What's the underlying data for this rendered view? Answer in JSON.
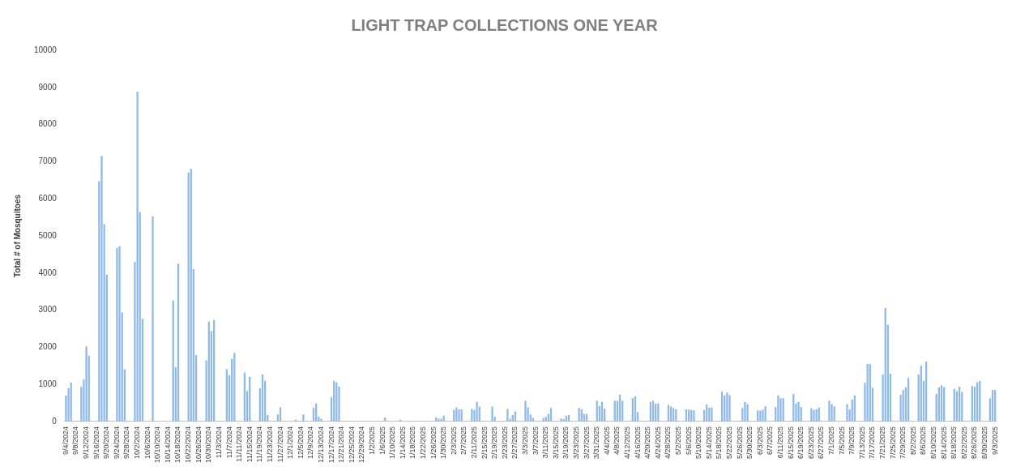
{
  "chart_data": {
    "type": "bar",
    "title": "LIGHT TRAP COLLECTIONS ONE YEAR",
    "ylabel": "Total # of Mosquitoes",
    "color": "#8fb9e8",
    "ylim": [
      0,
      10000
    ],
    "yticks": [
      0,
      1000,
      2000,
      3000,
      4000,
      5000,
      6000,
      7000,
      8000,
      9000,
      10000
    ],
    "categories": [
      "9/4/2024",
      null,
      null,
      null,
      "9/8/2024",
      null,
      null,
      null,
      "9/12/2024",
      null,
      null,
      null,
      "9/16/2024",
      null,
      null,
      null,
      "9/20/2024",
      null,
      null,
      null,
      "9/24/2024",
      null,
      null,
      null,
      "9/28/2024",
      null,
      null,
      null,
      "10/2/2024",
      null,
      null,
      null,
      "10/6/2024",
      null,
      null,
      null,
      "10/10/2024",
      null,
      null,
      null,
      "10/14/2024",
      null,
      null,
      null,
      "10/18/2024",
      null,
      null,
      null,
      "10/22/2024",
      null,
      null,
      null,
      "10/26/2024",
      null,
      null,
      null,
      "10/30/2024",
      null,
      null,
      null,
      "11/3/2024",
      null,
      null,
      null,
      "11/7/2024",
      null,
      null,
      null,
      "11/11/2024",
      null,
      null,
      null,
      "11/15/2024",
      null,
      null,
      null,
      "11/19/2024",
      null,
      null,
      null,
      "11/23/2024",
      null,
      null,
      null,
      "11/27/2024",
      null,
      null,
      null,
      "12/1/2024",
      null,
      null,
      null,
      "12/5/2024",
      null,
      null,
      null,
      "12/9/2024",
      null,
      null,
      null,
      "12/13/2024",
      null,
      null,
      null,
      "12/17/2024",
      null,
      null,
      null,
      "12/21/2024",
      null,
      null,
      null,
      "12/25/2024",
      null,
      null,
      null,
      "12/29/2024",
      null,
      null,
      null,
      "1/2/2025",
      null,
      null,
      null,
      "1/6/2025",
      null,
      null,
      null,
      "1/10/2025",
      null,
      null,
      null,
      "1/14/2025",
      null,
      null,
      null,
      "1/18/2025",
      null,
      null,
      null,
      "1/22/2025",
      null,
      null,
      null,
      "1/26/2025",
      null,
      null,
      null,
      "1/30/2025",
      null,
      null,
      null,
      "2/3/2025",
      null,
      null,
      null,
      "2/7/2025",
      null,
      null,
      null,
      "2/11/2025",
      null,
      null,
      null,
      "2/15/2025",
      null,
      null,
      null,
      "2/19/2025",
      null,
      null,
      null,
      "2/23/2025",
      null,
      null,
      null,
      "2/27/2025",
      null,
      null,
      null,
      "3/3/2025",
      null,
      null,
      null,
      "3/7/2025",
      null,
      null,
      null,
      "3/11/2025",
      null,
      null,
      null,
      "3/15/2025",
      null,
      null,
      null,
      "3/19/2025",
      null,
      null,
      null,
      "3/23/2025",
      null,
      null,
      null,
      "3/27/2025",
      null,
      null,
      null,
      "3/31/2025",
      null,
      null,
      null,
      "4/4/2025",
      null,
      null,
      null,
      "4/8/2025",
      null,
      null,
      null,
      "4/12/2025",
      null,
      null,
      null,
      "4/16/2025",
      null,
      null,
      null,
      "4/20/2025",
      null,
      null,
      null,
      "4/24/2025",
      null,
      null,
      null,
      "4/28/2025",
      null,
      null,
      null,
      "5/2/2025",
      null,
      null,
      null,
      "5/6/2025",
      null,
      null,
      null,
      "5/10/2025",
      null,
      null,
      null,
      "5/14/2025",
      null,
      null,
      null,
      "5/18/2025",
      null,
      null,
      null,
      "5/22/2025",
      null,
      null,
      null,
      "5/26/2025",
      null,
      null,
      null,
      "5/30/2025",
      null,
      null,
      null,
      "6/3/2025",
      null,
      null,
      null,
      "6/7/2025",
      null,
      null,
      null,
      "6/11/2025",
      null,
      null,
      null,
      "6/15/2025",
      null,
      null,
      null,
      "6/19/2025",
      null,
      null,
      null,
      "6/23/2025",
      null,
      null,
      null,
      "6/27/2025",
      null,
      null,
      null,
      "7/1/2025",
      null,
      null,
      null,
      "7/5/2025",
      null,
      null,
      null,
      "7/9/2025",
      null,
      null,
      null,
      "7/13/2025",
      null,
      null,
      null,
      "7/17/2025",
      null,
      null,
      null,
      "7/21/2025",
      null,
      null,
      null,
      "7/25/2025",
      null,
      null,
      null,
      "7/29/2025",
      null,
      null,
      null,
      "8/2/2025",
      null,
      null,
      null,
      "8/6/2025",
      null,
      null,
      null,
      "8/10/2025",
      null,
      null,
      null,
      "8/14/2025",
      null,
      null,
      null,
      "8/18/2025",
      null,
      null,
      null,
      "8/22/2025",
      null,
      null,
      null,
      "8/26/2025",
      null,
      null,
      null,
      "8/30/2025",
      null,
      null,
      null,
      "9/3/2025"
    ],
    "values": [
      700,
      895,
      1050,
      null,
      null,
      null,
      930,
      1130,
      2025,
      1775,
      null,
      null,
      null,
      6475,
      7150,
      5315,
      3955,
      null,
      null,
      null,
      4680,
      4720,
      2935,
      1410,
      null,
      null,
      null,
      4300,
      8880,
      5645,
      2765,
      null,
      null,
      null,
      5525,
      null,
      null,
      null,
      null,
      null,
      null,
      null,
      3265,
      1460,
      4250,
      null,
      null,
      null,
      6710,
      6805,
      4105,
      1790,
      null,
      null,
      null,
      1645,
      2695,
      2435,
      2730,
      null,
      null,
      null,
      null,
      1410,
      1250,
      1690,
      1850,
      null,
      null,
      null,
      1320,
      820,
      1205,
      null,
      null,
      null,
      900,
      1270,
      1100,
      180,
      null,
      null,
      null,
      190,
      380,
      null,
      null,
      null,
      null,
      null,
      50,
      null,
      null,
      190,
      null,
      null,
      null,
      365,
      485,
      130,
      75,
      null,
      null,
      null,
      660,
      1100,
      1055,
      940,
      null,
      null,
      null,
      null,
      null,
      null,
      null,
      null,
      null,
      null,
      null,
      null,
      null,
      null,
      null,
      null,
      null,
      110,
      null,
      null,
      null,
      null,
      null,
      50,
      null,
      null,
      null,
      null,
      null,
      null,
      null,
      null,
      null,
      null,
      null,
      null,
      null,
      110,
      75,
      75,
      160,
      null,
      null,
      null,
      315,
      380,
      325,
      325,
      null,
      null,
      null,
      340,
      310,
      530,
      405,
      null,
      null,
      null,
      null,
      405,
      130,
      null,
      null,
      null,
      null,
      340,
      75,
      175,
      270,
      null,
      null,
      null,
      560,
      380,
      190,
      95,
      null,
      null,
      null,
      95,
      125,
      205,
      365,
      null,
      null,
      null,
      80,
      60,
      155,
      175,
      null,
      null,
      null,
      365,
      330,
      205,
      205,
      null,
      null,
      null,
      560,
      420,
      530,
      350,
      null,
      null,
      null,
      560,
      560,
      725,
      560,
      null,
      null,
      null,
      630,
      680,
      255,
      null,
      null,
      null,
      null,
      520,
      560,
      475,
      485,
      null,
      null,
      null,
      450,
      405,
      365,
      330,
      null,
      null,
      null,
      325,
      325,
      310,
      300,
      null,
      null,
      null,
      310,
      460,
      375,
      375,
      null,
      null,
      null,
      805,
      705,
      780,
      710,
      null,
      null,
      null,
      null,
      365,
      530,
      470,
      null,
      null,
      null,
      300,
      295,
      315,
      410,
      null,
      null,
      null,
      390,
      705,
      625,
      625,
      null,
      null,
      null,
      740,
      485,
      530,
      390,
      null,
      null,
      null,
      360,
      310,
      330,
      375,
      null,
      null,
      null,
      560,
      470,
      410,
      null,
      null,
      null,
      null,
      470,
      325,
      595,
      705,
      null,
      null,
      null,
      1040,
      1550,
      1550,
      910,
      null,
      null,
      null,
      1270,
      3060,
      2605,
      1285,
      null,
      null,
      null,
      720,
      850,
      920,
      1175,
      null,
      null,
      null,
      1270,
      1505,
      1095,
      1615,
      null,
      null,
      null,
      740,
      920,
      975,
      925,
      null,
      null,
      null,
      880,
      820,
      940,
      795,
      null,
      null,
      null,
      955,
      940,
      1065,
      1095,
      null,
      null,
      null,
      625,
      850,
      850
    ]
  }
}
